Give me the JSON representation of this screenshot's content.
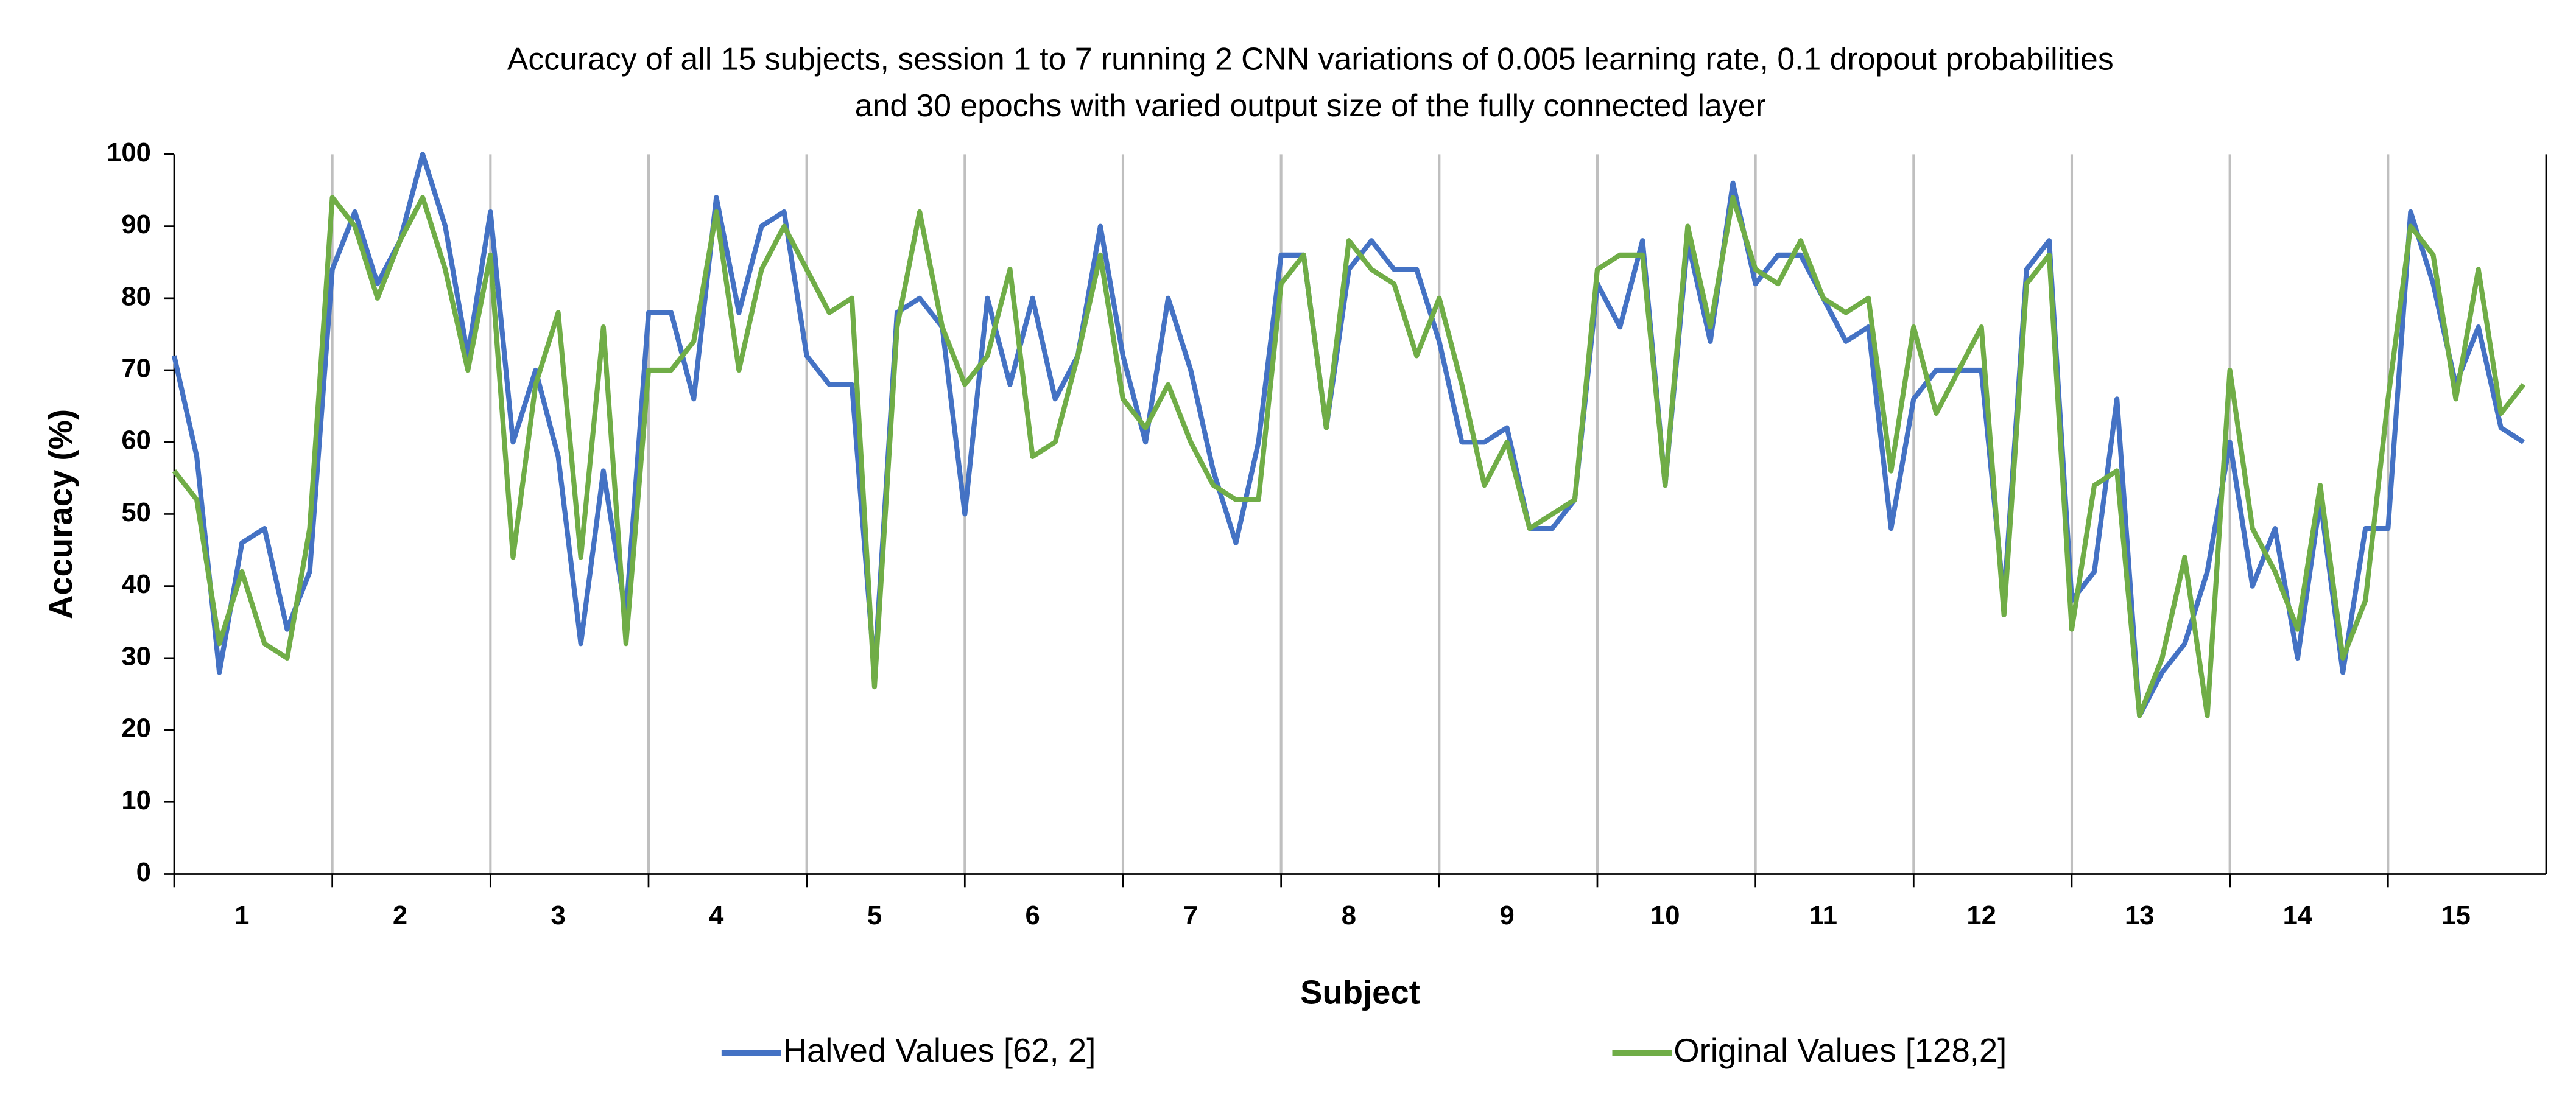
{
  "chart_data": {
    "type": "line",
    "title": [
      "Accuracy of all 15 subjects, session 1 to 7 running 2 CNN variations of 0.005 learning rate, 0.1 dropout probabilities",
      "and 30 epochs with varied output size of the fully connected layer"
    ],
    "x_label": "Subject",
    "y_label": "Accuracy (%)",
    "categories": [
      null,
      null,
      null,
      "1",
      null,
      null,
      null,
      null,
      null,
      null,
      "2",
      null,
      null,
      null,
      null,
      null,
      null,
      "3",
      null,
      null,
      null,
      null,
      null,
      null,
      "4",
      null,
      null,
      null,
      null,
      null,
      null,
      "5",
      null,
      null,
      null,
      null,
      null,
      null,
      "6",
      null,
      null,
      null,
      null,
      null,
      null,
      "7",
      null,
      null,
      null,
      null,
      null,
      null,
      "8",
      null,
      null,
      null,
      null,
      null,
      null,
      "9",
      null,
      null,
      null,
      null,
      null,
      null,
      "10",
      null,
      null,
      null,
      null,
      null,
      null,
      "11",
      null,
      null,
      null,
      null,
      null,
      null,
      "12",
      null,
      null,
      null,
      null,
      null,
      null,
      "13",
      null,
      null,
      null,
      null,
      null,
      null,
      "14",
      null,
      null,
      null,
      null,
      null,
      null,
      "15",
      null,
      null,
      null
    ],
    "series": [
      {
        "name": "Halved Values [62, 2]",
        "color": "#4472c4",
        "values": [
          72,
          58,
          28,
          46,
          48,
          34,
          42,
          84,
          92,
          82,
          88,
          100,
          90,
          72,
          92,
          60,
          70,
          58,
          32,
          56,
          36,
          78,
          78,
          66,
          94,
          78,
          90,
          92,
          72,
          68,
          68,
          28,
          78,
          80,
          76,
          50,
          80,
          68,
          80,
          66,
          72,
          90,
          72,
          60,
          80,
          70,
          56,
          46,
          60,
          86,
          86,
          62,
          84,
          88,
          84,
          84,
          74,
          60,
          60,
          62,
          48,
          48,
          52,
          82,
          76,
          88,
          54,
          88,
          74,
          96,
          82,
          86,
          86,
          80,
          74,
          76,
          48,
          66,
          70,
          70,
          70,
          38,
          84,
          88,
          38,
          42,
          66,
          22,
          28,
          32,
          42,
          60,
          40,
          48,
          30,
          52,
          28,
          48,
          48,
          92,
          82,
          68,
          76,
          62,
          60
        ]
      },
      {
        "name": "Original Values [128,2]",
        "color": "#70ad47",
        "values": [
          56,
          52,
          32,
          42,
          32,
          30,
          48,
          94,
          90,
          80,
          88,
          94,
          84,
          70,
          86,
          44,
          68,
          78,
          44,
          76,
          32,
          70,
          70,
          74,
          92,
          70,
          84,
          90,
          84,
          78,
          80,
          26,
          76,
          92,
          76,
          68,
          72,
          84,
          58,
          60,
          72,
          86,
          66,
          62,
          68,
          60,
          54,
          52,
          52,
          82,
          86,
          62,
          88,
          84,
          82,
          72,
          80,
          68,
          54,
          60,
          48,
          50,
          52,
          84,
          86,
          86,
          54,
          90,
          76,
          94,
          84,
          82,
          88,
          80,
          78,
          80,
          56,
          76,
          64,
          70,
          76,
          36,
          82,
          86,
          34,
          54,
          56,
          22,
          30,
          44,
          22,
          70,
          48,
          42,
          34,
          54,
          30,
          38,
          66,
          90,
          86,
          66,
          84,
          64,
          68
        ]
      }
    ],
    "ylim": [
      0,
      100
    ],
    "yticks": [
      0,
      10,
      20,
      30,
      40,
      50,
      60,
      70,
      80,
      90,
      100
    ],
    "grid": "x",
    "legend": "bottom"
  }
}
